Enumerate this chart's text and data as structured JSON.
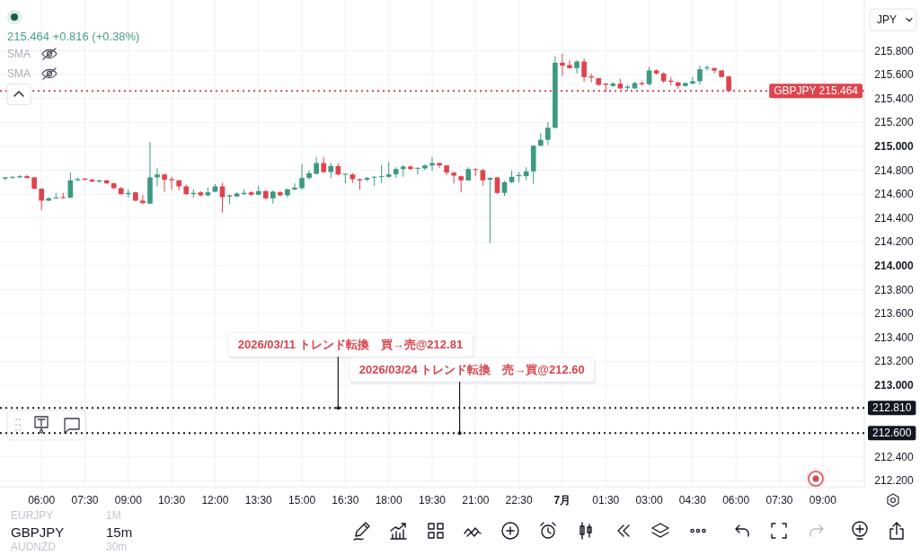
{
  "chart_data": {
    "type": "candlestick",
    "title": "GBPJPY",
    "subtitle": "15m",
    "x": [
      "--06-30T04:45",
      "--06-30T05:00",
      "--06-30T05:15",
      "--06-30T05:30",
      "--06-30T05:45",
      "--06-30T06:00",
      "--06-30T06:15",
      "--06-30T06:30",
      "--06-30T06:45",
      "--06-30T07:00",
      "--06-30T07:15",
      "--06-30T07:30",
      "--06-30T07:45",
      "--06-30T08:00",
      "--06-30T08:15",
      "--06-30T08:30",
      "--06-30T08:45",
      "--06-30T09:00",
      "--06-30T09:15",
      "--06-30T09:30",
      "--06-30T09:45",
      "--06-30T10:00",
      "--06-30T10:15",
      "--06-30T10:30",
      "--06-30T10:45",
      "--06-30T11:00",
      "--06-30T11:15",
      "--06-30T11:30",
      "--06-30T11:45",
      "--06-30T12:00",
      "--06-30T12:15",
      "--06-30T12:30",
      "--06-30T12:45",
      "--06-30T13:00",
      "--06-30T13:15",
      "--06-30T13:30",
      "--06-30T13:45",
      "--06-30T14:00",
      "--06-30T14:15",
      "--06-30T14:30",
      "--06-30T14:45",
      "--06-30T15:00",
      "--06-30T15:15",
      "--06-30T15:30",
      "--06-30T15:45",
      "--06-30T16:00",
      "--06-30T16:15",
      "--06-30T16:30",
      "--06-30T16:45",
      "--06-30T17:00",
      "--06-30T17:15",
      "--06-30T17:30",
      "--06-30T17:45",
      "--06-30T18:00",
      "--06-30T18:15",
      "--06-30T18:30",
      "--06-30T18:45",
      "--06-30T19:00",
      "--06-30T19:15",
      "--06-30T19:30",
      "--06-30T19:45",
      "--06-30T20:00",
      "--06-30T20:15",
      "--06-30T20:30",
      "--06-30T20:45",
      "--06-30T21:00",
      "--06-30T21:15",
      "--06-30T21:30",
      "--06-30T21:45",
      "--06-30T22:00",
      "--06-30T22:15",
      "--06-30T22:30",
      "--06-30T22:45",
      "--06-30T23:00",
      "--06-30T23:15",
      "--06-30T23:30",
      "--06-30T23:45",
      "--07-01T00:00",
      "--07-01T00:15",
      "--07-01T00:30",
      "--07-01T00:45",
      "--07-01T01:00",
      "--07-01T01:15",
      "--07-01T01:30",
      "--07-01T01:45",
      "--07-01T02:00",
      "--07-01T02:15",
      "--07-01T02:30",
      "--07-01T02:45",
      "--07-01T03:00",
      "--07-01T03:15",
      "--07-01T03:30",
      "--07-01T03:45",
      "--07-01T04:00",
      "--07-01T04:15",
      "--07-01T04:30",
      "--07-01T04:45",
      "--07-01T05:00",
      "--07-01T05:15",
      "--07-01T05:30",
      "--07-01T05:45"
    ],
    "ohlc": [
      [
        214.73,
        214.745,
        214.715,
        214.74
      ],
      [
        214.74,
        214.75,
        214.725,
        214.745
      ],
      [
        214.74,
        214.76,
        214.735,
        214.75
      ],
      [
        214.75,
        214.76,
        214.73,
        214.735
      ],
      [
        214.74,
        214.745,
        214.64,
        214.645
      ],
      [
        214.645,
        214.65,
        214.465,
        214.545
      ],
      [
        214.545,
        214.575,
        214.54,
        214.565
      ],
      [
        214.565,
        214.61,
        214.56,
        214.57
      ],
      [
        214.575,
        214.61,
        214.56,
        214.57
      ],
      [
        214.57,
        214.78,
        214.565,
        214.715
      ],
      [
        214.715,
        214.74,
        214.71,
        214.725
      ],
      [
        214.73,
        214.735,
        214.715,
        214.72
      ],
      [
        214.72,
        214.73,
        214.7,
        214.705
      ],
      [
        214.705,
        214.72,
        214.695,
        214.715
      ],
      [
        214.715,
        214.72,
        214.685,
        214.69
      ],
      [
        214.69,
        214.695,
        214.64,
        214.65
      ],
      [
        214.65,
        214.66,
        214.595,
        214.6
      ],
      [
        214.6,
        214.64,
        214.57,
        214.61
      ],
      [
        214.615,
        214.62,
        214.54,
        214.545
      ],
      [
        214.545,
        214.595,
        214.515,
        214.525
      ],
      [
        214.52,
        215.035,
        214.515,
        214.74
      ],
      [
        214.74,
        214.82,
        214.665,
        214.765
      ],
      [
        214.765,
        214.77,
        214.62,
        214.72
      ],
      [
        214.725,
        214.745,
        214.635,
        214.715
      ],
      [
        214.715,
        214.72,
        214.63,
        214.665
      ],
      [
        214.665,
        214.68,
        214.59,
        214.6
      ],
      [
        214.6,
        214.64,
        214.57,
        214.61
      ],
      [
        214.615,
        214.625,
        214.58,
        214.59
      ],
      [
        214.59,
        214.655,
        214.58,
        214.615
      ],
      [
        214.62,
        214.685,
        214.615,
        214.665
      ],
      [
        214.665,
        214.695,
        214.445,
        214.575
      ],
      [
        214.58,
        214.595,
        214.515,
        214.59
      ],
      [
        214.58,
        214.615,
        214.575,
        214.605
      ],
      [
        214.6,
        214.64,
        214.59,
        214.61
      ],
      [
        214.615,
        214.625,
        214.585,
        214.595
      ],
      [
        214.595,
        214.67,
        214.59,
        214.625
      ],
      [
        214.625,
        214.635,
        214.555,
        214.565
      ],
      [
        214.565,
        214.63,
        214.52,
        214.62
      ],
      [
        214.615,
        214.625,
        214.58,
        214.59
      ],
      [
        214.59,
        214.645,
        214.57,
        214.64
      ],
      [
        214.64,
        214.69,
        214.63,
        214.655
      ],
      [
        214.65,
        214.85,
        214.635,
        214.735
      ],
      [
        214.735,
        214.8,
        214.72,
        214.775
      ],
      [
        214.77,
        214.91,
        214.765,
        214.86
      ],
      [
        214.86,
        214.91,
        214.775,
        214.785
      ],
      [
        214.785,
        214.86,
        214.735,
        214.835
      ],
      [
        214.835,
        214.86,
        214.755,
        214.765
      ],
      [
        214.765,
        214.775,
        214.69,
        214.77
      ],
      [
        214.765,
        214.775,
        214.695,
        214.725
      ],
      [
        214.725,
        214.73,
        214.635,
        214.715
      ],
      [
        214.72,
        214.745,
        214.705,
        214.735
      ],
      [
        214.74,
        214.75,
        214.67,
        214.745
      ],
      [
        214.745,
        214.845,
        214.695,
        214.75
      ],
      [
        214.745,
        214.87,
        214.735,
        214.765
      ],
      [
        214.765,
        214.825,
        214.735,
        214.81
      ],
      [
        214.81,
        214.845,
        214.745,
        214.83
      ],
      [
        214.83,
        214.845,
        214.8,
        214.81
      ],
      [
        214.815,
        214.825,
        214.765,
        214.82
      ],
      [
        214.815,
        214.85,
        214.8,
        214.84
      ],
      [
        214.84,
        214.91,
        214.795,
        214.86
      ],
      [
        214.86,
        214.865,
        214.82,
        214.84
      ],
      [
        214.84,
        214.845,
        214.76,
        214.78
      ],
      [
        214.78,
        214.785,
        214.69,
        214.755
      ],
      [
        214.75,
        214.755,
        214.615,
        214.715
      ],
      [
        214.715,
        214.825,
        214.71,
        214.81
      ],
      [
        214.81,
        214.815,
        214.75,
        214.805
      ],
      [
        214.8,
        214.81,
        214.67,
        214.715
      ],
      [
        214.72,
        214.74,
        214.19,
        214.735
      ],
      [
        214.74,
        214.745,
        214.6,
        214.61
      ],
      [
        214.61,
        214.71,
        214.585,
        214.7
      ],
      [
        214.7,
        214.795,
        214.69,
        214.745
      ],
      [
        214.75,
        214.785,
        214.695,
        214.76
      ],
      [
        214.75,
        214.825,
        214.715,
        214.79
      ],
      [
        214.79,
        215.01,
        214.685,
        215.005
      ],
      [
        215.005,
        215.11,
        215.0,
        215.055
      ],
      [
        215.055,
        215.205,
        215.01,
        215.155
      ],
      [
        215.155,
        215.755,
        215.15,
        215.7
      ],
      [
        215.7,
        215.775,
        215.59,
        215.675
      ],
      [
        215.68,
        215.72,
        215.65,
        215.655
      ],
      [
        215.655,
        215.72,
        215.61,
        215.71
      ],
      [
        215.71,
        215.735,
        215.54,
        215.58
      ],
      [
        215.585,
        215.61,
        215.535,
        215.575
      ],
      [
        215.57,
        215.575,
        215.505,
        215.515
      ],
      [
        215.525,
        215.53,
        215.455,
        215.515
      ],
      [
        215.505,
        215.54,
        215.5,
        215.525
      ],
      [
        215.525,
        215.565,
        215.48,
        215.485
      ],
      [
        215.49,
        215.515,
        215.465,
        215.5
      ],
      [
        215.485,
        215.54,
        215.48,
        215.53
      ],
      [
        215.53,
        215.545,
        215.51,
        215.52
      ],
      [
        215.52,
        215.665,
        215.51,
        215.635
      ],
      [
        215.635,
        215.645,
        215.6,
        215.61
      ],
      [
        215.61,
        215.62,
        215.53,
        215.545
      ],
      [
        215.55,
        215.58,
        215.51,
        215.54
      ],
      [
        215.535,
        215.545,
        215.48,
        215.505
      ],
      [
        215.505,
        215.535,
        215.5,
        215.53
      ],
      [
        215.525,
        215.58,
        215.52,
        215.545
      ],
      [
        215.545,
        215.675,
        215.515,
        215.645
      ],
      [
        215.655,
        215.68,
        215.635,
        215.66
      ],
      [
        215.655,
        215.66,
        215.61,
        215.635
      ],
      [
        215.635,
        215.64,
        215.575,
        215.58
      ],
      [
        215.585,
        215.59,
        215.464,
        215.464
      ]
    ],
    "colors": [
      "#3b9a81",
      "#3b9a81",
      "#3b9a81",
      "#e0434c",
      "#e0434c",
      "#e0434c",
      "#3b9a81",
      "#3b9a81",
      "#e0434c",
      "#3b9a81",
      "#3b9a81",
      "#e0434c",
      "#e0434c",
      "#3b9a81",
      "#e0434c",
      "#e0434c",
      "#e0434c",
      "#3b9a81",
      "#e0434c",
      "#e0434c",
      "#3b9a81",
      "#3b9a81",
      "#e0434c",
      "#e0434c",
      "#e0434c",
      "#e0434c",
      "#3b9a81",
      "#e0434c",
      "#3b9a81",
      "#3b9a81",
      "#e0434c",
      "#3b9a81",
      "#3b9a81",
      "#3b9a81",
      "#e0434c",
      "#3b9a81",
      "#e0434c",
      "#3b9a81",
      "#e0434c",
      "#3b9a81",
      "#3b9a81",
      "#3b9a81",
      "#3b9a81",
      "#3b9a81",
      "#e0434c",
      "#3b9a81",
      "#e0434c",
      "#3b9a81",
      "#e0434c",
      "#e0434c",
      "#3b9a81",
      "#3b9a81",
      "#3b9a81",
      "#3b9a81",
      "#3b9a81",
      "#3b9a81",
      "#e0434c",
      "#3b9a81",
      "#3b9a81",
      "#3b9a81",
      "#e0434c",
      "#e0434c",
      "#e0434c",
      "#e0434c",
      "#3b9a81",
      "#e0434c",
      "#e0434c",
      "#3b9a81",
      "#e0434c",
      "#3b9a81",
      "#3b9a81",
      "#3b9a81",
      "#3b9a81",
      "#3b9a81",
      "#3b9a81",
      "#3b9a81",
      "#3b9a81",
      "#e0434c",
      "#e0434c",
      "#3b9a81",
      "#e0434c",
      "#e0434c",
      "#e0434c",
      "#e0434c",
      "#3b9a81",
      "#e0434c",
      "#3b9a81",
      "#3b9a81",
      "#e0434c",
      "#3b9a81",
      "#e0434c",
      "#e0434c",
      "#e0434c",
      "#e0434c",
      "#3b9a81",
      "#3b9a81",
      "#3b9a81",
      "#3b9a81",
      "#e0434c",
      "#e0434c",
      "#e0434c"
    ],
    "xlim": [
      "--06-30T04:34",
      "--07-01T10:26"
    ],
    "xticks": [
      {
        "value": "--06-30T06:00",
        "label": "06:00"
      },
      {
        "value": "--06-30T07:30",
        "label": "07:30"
      },
      {
        "value": "--06-30T09:00",
        "label": "09:00"
      },
      {
        "value": "--06-30T10:30",
        "label": "10:30"
      },
      {
        "value": "--06-30T12:00",
        "label": "12:00"
      },
      {
        "value": "--06-30T13:30",
        "label": "13:30"
      },
      {
        "value": "--06-30T15:00",
        "label": "15:00"
      },
      {
        "value": "--06-30T16:30",
        "label": "16:30"
      },
      {
        "value": "--06-30T18:00",
        "label": "18:00"
      },
      {
        "value": "--06-30T19:30",
        "label": "19:30"
      },
      {
        "value": "--06-30T21:00",
        "label": "21:00"
      },
      {
        "value": "--06-30T22:30",
        "label": "22:30"
      },
      {
        "value": "--07-01",
        "label": "7月"
      },
      {
        "value": "--07-01T01:30",
        "label": "01:30"
      },
      {
        "value": "--07-01T03:00",
        "label": "03:00"
      },
      {
        "value": "--07-01T04:30",
        "label": "04:30"
      },
      {
        "value": "--07-01T06:00",
        "label": "06:00"
      },
      {
        "value": "--07-01T07:30",
        "label": "07:30"
      },
      {
        "value": "--07-01T09:00",
        "label": "09:00"
      }
    ],
    "ylim": [
      212.15,
      216.225
    ],
    "yticks": [
      {
        "value": 212.2,
        "label": "212.200"
      },
      {
        "value": 212.4,
        "label": "212.400"
      },
      {
        "value": 213,
        "label": "213.000"
      },
      {
        "value": 213.2,
        "label": "213.200"
      },
      {
        "value": 213.4,
        "label": "213.400"
      },
      {
        "value": 213.6,
        "label": "213.600"
      },
      {
        "value": 213.8,
        "label": "213.800"
      },
      {
        "value": 214,
        "label": "214.000"
      },
      {
        "value": 214.2,
        "label": "214.200"
      },
      {
        "value": 214.4,
        "label": "214.400"
      },
      {
        "value": 214.6,
        "label": "214.600"
      },
      {
        "value": 214.8,
        "label": "214.800"
      },
      {
        "value": 215,
        "label": "215.000"
      },
      {
        "value": 215.2,
        "label": "215.200"
      },
      {
        "value": 215.4,
        "label": "215.400"
      },
      {
        "value": 215.6,
        "label": "215.600"
      },
      {
        "value": 215.8,
        "label": "215.800"
      }
    ],
    "grid": true,
    "ref_lines": [
      {
        "axis": "y",
        "value": 215.464,
        "label": "GBPJPY 215.464",
        "color": "#e0434c",
        "line_style": "dotted"
      },
      {
        "axis": "y",
        "value": 212.81,
        "label": "212.810",
        "color": "#131722",
        "line_style": "dotted"
      },
      {
        "axis": "y",
        "value": 212.6,
        "label": "212.600",
        "color": "#131722",
        "line_style": "dotted"
      }
    ],
    "annotations": [
      "215.464 +0.816 (+0.38%)",
      "SMA",
      "SMA",
      "JPY",
      "EURJPY",
      "1M",
      "AUDNZD",
      "30m",
      {
        "text": "2026/03/11 トレンド転換　買→売@212.81",
        "x": "--06-30T16:15",
        "y": 212.81
      },
      {
        "text": "2026/03/24 トレンド転換　売→買@212.60",
        "x": "--06-30T20:27",
        "y": 212.6
      }
    ]
  }
}
